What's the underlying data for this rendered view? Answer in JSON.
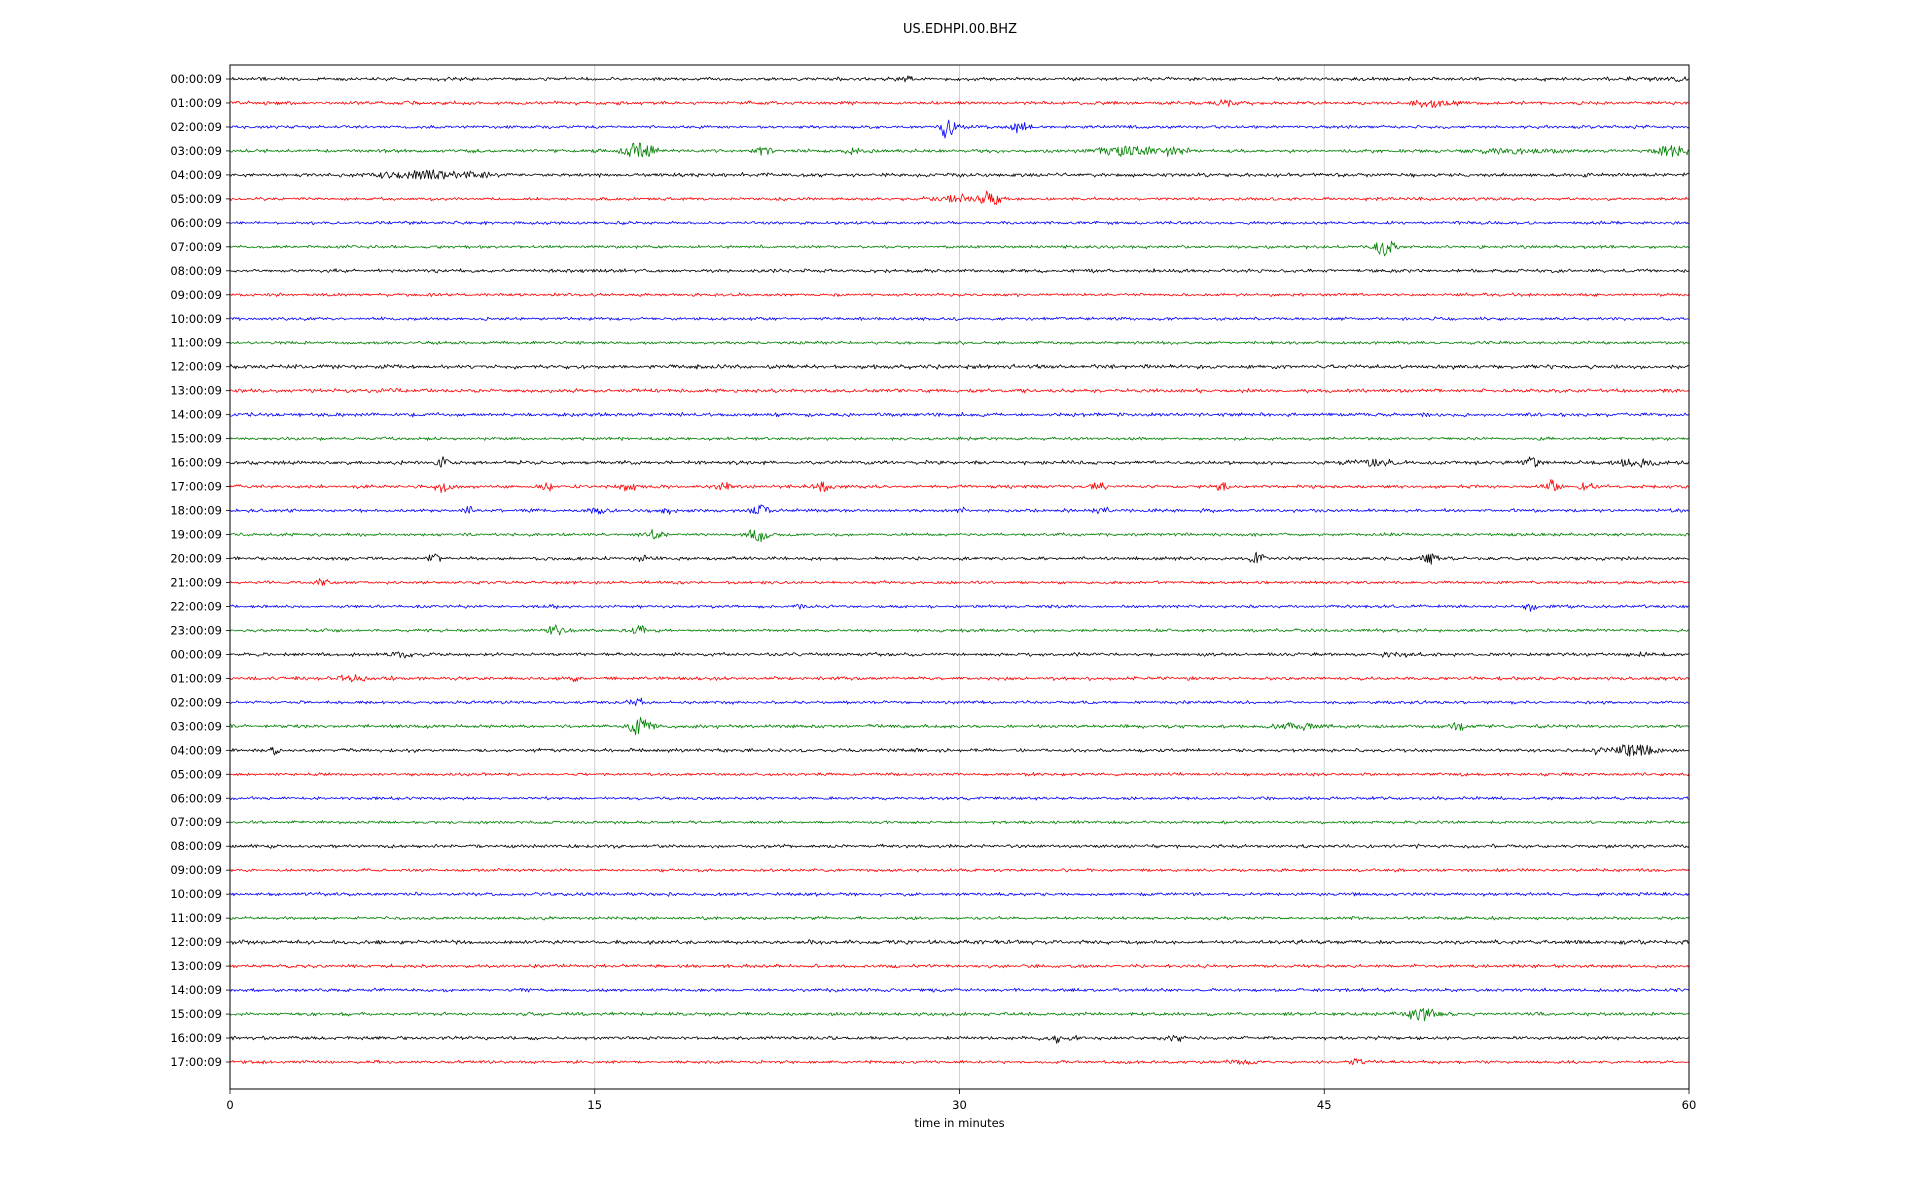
{
  "chart_data": {
    "type": "line",
    "chart_kind": "seismogram-helicorder-dayplot",
    "title": "US.EDHPI.00.BHZ",
    "xlabel": "time in minutes",
    "xlim": [
      0,
      60
    ],
    "x_ticks": [
      0,
      15,
      30,
      45,
      60
    ],
    "grid_x": [
      15,
      30,
      45
    ],
    "grid_color": "#cccccc",
    "axis_color": "#000000",
    "colors_cycle": [
      "#000000",
      "#ff0000",
      "#0000ff",
      "#008000"
    ],
    "event_format": "[minute, amplitude_px, width_minutes]",
    "rows": [
      {
        "label": "00:00:09",
        "color": "#000000",
        "noise": 1.0,
        "events": [
          [
            28,
            2.5,
            0.5
          ],
          [
            59,
            2.5,
            1.2
          ]
        ]
      },
      {
        "label": "01:00:09",
        "color": "#ff0000",
        "noise": 1.0,
        "events": [
          [
            41,
            3,
            0.8
          ],
          [
            49.5,
            4.5,
            1.0
          ]
        ]
      },
      {
        "label": "02:00:09",
        "color": "#0000ff",
        "noise": 0.9,
        "events": [
          [
            29.5,
            13,
            0.35
          ],
          [
            32.5,
            7,
            0.35
          ]
        ]
      },
      {
        "label": "03:00:09",
        "color": "#008000",
        "noise": 1.0,
        "events": [
          [
            16.8,
            9,
            0.7
          ],
          [
            22,
            3.5,
            0.5
          ],
          [
            25.5,
            3.5,
            0.4
          ],
          [
            37,
            5,
            1.8
          ],
          [
            38.5,
            4,
            1.0
          ],
          [
            53,
            3.5,
            1.8
          ],
          [
            59.3,
            7,
            0.7
          ]
        ]
      },
      {
        "label": "04:00:09",
        "color": "#000000",
        "noise": 1.1,
        "events": [
          [
            6.5,
            3,
            0.6
          ],
          [
            8,
            6,
            1.2
          ],
          [
            10,
            3.5,
            0.8
          ]
        ]
      },
      {
        "label": "05:00:09",
        "color": "#ff0000",
        "noise": 0.9,
        "events": [
          [
            30,
            3.5,
            1.4
          ],
          [
            31.3,
            11,
            0.4
          ]
        ]
      },
      {
        "label": "06:00:09",
        "color": "#0000ff",
        "noise": 0.9,
        "events": []
      },
      {
        "label": "07:00:09",
        "color": "#008000",
        "noise": 0.9,
        "events": [
          [
            47.5,
            9,
            0.45
          ]
        ]
      },
      {
        "label": "08:00:09",
        "color": "#000000",
        "noise": 1.0,
        "events": []
      },
      {
        "label": "09:00:09",
        "color": "#ff0000",
        "noise": 0.9,
        "events": []
      },
      {
        "label": "10:00:09",
        "color": "#0000ff",
        "noise": 0.9,
        "events": []
      },
      {
        "label": "11:00:09",
        "color": "#008000",
        "noise": 0.9,
        "events": []
      },
      {
        "label": "12:00:09",
        "color": "#000000",
        "noise": 1.2,
        "events": []
      },
      {
        "label": "13:00:09",
        "color": "#ff0000",
        "noise": 1.1,
        "events": []
      },
      {
        "label": "14:00:09",
        "color": "#0000ff",
        "noise": 1.1,
        "events": []
      },
      {
        "label": "15:00:09",
        "color": "#008000",
        "noise": 0.9,
        "events": []
      },
      {
        "label": "16:00:09",
        "color": "#000000",
        "noise": 1.1,
        "events": [
          [
            8.8,
            5,
            0.35
          ],
          [
            47,
            3.5,
            1.2
          ],
          [
            53.5,
            6,
            0.35
          ],
          [
            57.8,
            4,
            1.0
          ]
        ]
      },
      {
        "label": "17:00:09",
        "color": "#ff0000",
        "noise": 1.0,
        "events": [
          [
            8.7,
            6,
            0.35
          ],
          [
            13,
            5,
            0.3
          ],
          [
            16.4,
            6,
            0.3
          ],
          [
            20.3,
            5,
            0.3
          ],
          [
            24.4,
            6,
            0.35
          ],
          [
            35.7,
            6,
            0.35
          ],
          [
            40.8,
            4.5,
            0.3
          ],
          [
            54.3,
            7,
            0.35
          ],
          [
            55.8,
            5,
            0.3
          ]
        ]
      },
      {
        "label": "18:00:09",
        "color": "#0000ff",
        "noise": 1.0,
        "events": [
          [
            9.8,
            3.5,
            0.35
          ],
          [
            15.2,
            3.5,
            0.4
          ],
          [
            18,
            3.5,
            0.35
          ],
          [
            21.8,
            5,
            0.45
          ],
          [
            30,
            3.5,
            0.35
          ],
          [
            35.8,
            3.5,
            0.35
          ]
        ]
      },
      {
        "label": "19:00:09",
        "color": "#008000",
        "noise": 0.9,
        "events": [
          [
            17.4,
            5,
            0.45
          ],
          [
            21.7,
            7,
            0.5
          ]
        ]
      },
      {
        "label": "20:00:09",
        "color": "#000000",
        "noise": 1.0,
        "events": [
          [
            8.4,
            4.5,
            0.35
          ],
          [
            17,
            3.5,
            0.35
          ],
          [
            42.3,
            6,
            0.4
          ],
          [
            49.4,
            6,
            0.35
          ]
        ]
      },
      {
        "label": "21:00:09",
        "color": "#ff0000",
        "noise": 0.9,
        "events": [
          [
            3.8,
            3.5,
            0.35
          ]
        ]
      },
      {
        "label": "22:00:09",
        "color": "#0000ff",
        "noise": 0.9,
        "events": [
          [
            13.3,
            2.5,
            0.3
          ],
          [
            23.5,
            2.5,
            0.3
          ],
          [
            53.5,
            4.5,
            0.35
          ]
        ]
      },
      {
        "label": "23:00:09",
        "color": "#008000",
        "noise": 0.9,
        "events": [
          [
            13.4,
            6,
            0.45
          ],
          [
            16.9,
            5,
            0.4
          ]
        ]
      },
      {
        "label": "00:00:09",
        "color": "#000000",
        "noise": 1.0,
        "events": [
          [
            7,
            2.5,
            0.6
          ],
          [
            48,
            2.5,
            0.8
          ],
          [
            58,
            2.5,
            0.8
          ]
        ]
      },
      {
        "label": "01:00:09",
        "color": "#ff0000",
        "noise": 1.0,
        "events": [
          [
            5,
            3.5,
            1.1
          ],
          [
            14.2,
            3.5,
            0.35
          ]
        ]
      },
      {
        "label": "02:00:09",
        "color": "#0000ff",
        "noise": 0.9,
        "events": [
          [
            16.8,
            4.5,
            0.4
          ]
        ]
      },
      {
        "label": "03:00:09",
        "color": "#008000",
        "noise": 1.0,
        "events": [
          [
            16.9,
            10,
            0.5
          ],
          [
            44,
            3.5,
            1.4
          ],
          [
            50.5,
            5,
            0.3
          ]
        ]
      },
      {
        "label": "04:00:09",
        "color": "#000000",
        "noise": 1.0,
        "events": [
          [
            1.9,
            5,
            0.3
          ],
          [
            56.5,
            4,
            0.6
          ],
          [
            57.7,
            7,
            1.0
          ]
        ]
      },
      {
        "label": "05:00:09",
        "color": "#ff0000",
        "noise": 0.9,
        "events": []
      },
      {
        "label": "06:00:09",
        "color": "#0000ff",
        "noise": 0.9,
        "events": []
      },
      {
        "label": "07:00:09",
        "color": "#008000",
        "noise": 0.9,
        "events": []
      },
      {
        "label": "08:00:09",
        "color": "#000000",
        "noise": 1.0,
        "events": []
      },
      {
        "label": "09:00:09",
        "color": "#ff0000",
        "noise": 0.9,
        "events": []
      },
      {
        "label": "10:00:09",
        "color": "#0000ff",
        "noise": 1.0,
        "events": []
      },
      {
        "label": "11:00:09",
        "color": "#008000",
        "noise": 0.9,
        "events": []
      },
      {
        "label": "12:00:09",
        "color": "#000000",
        "noise": 1.2,
        "events": []
      },
      {
        "label": "13:00:09",
        "color": "#ff0000",
        "noise": 1.0,
        "events": []
      },
      {
        "label": "14:00:09",
        "color": "#0000ff",
        "noise": 1.0,
        "events": []
      },
      {
        "label": "15:00:09",
        "color": "#008000",
        "noise": 1.0,
        "events": [
          [
            49,
            7,
            0.7
          ]
        ]
      },
      {
        "label": "16:00:09",
        "color": "#000000",
        "noise": 1.0,
        "events": [
          [
            34,
            3.5,
            0.9
          ],
          [
            38.8,
            4.5,
            0.5
          ]
        ]
      },
      {
        "label": "17:00:09",
        "color": "#ff0000",
        "noise": 0.9,
        "events": [
          [
            41.5,
            2.5,
            0.7
          ],
          [
            46.5,
            3.5,
            0.5
          ]
        ]
      }
    ]
  }
}
